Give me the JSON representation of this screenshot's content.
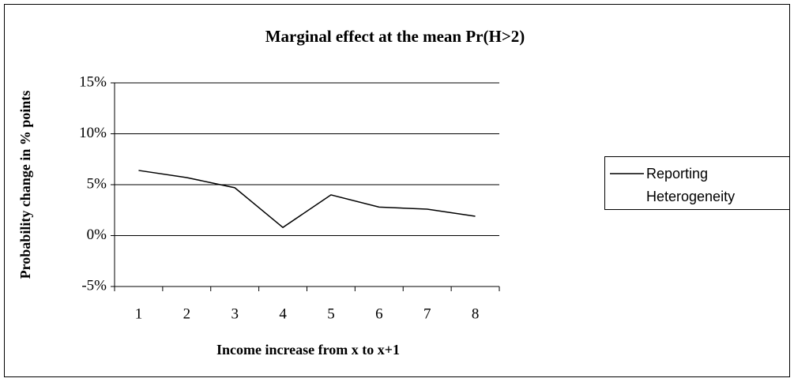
{
  "chart_data": {
    "type": "line",
    "title": "Marginal effect at the mean Pr(H>2)",
    "x_label": "Income increase from x to x+1",
    "y_label": "Probability change in % points",
    "categories": [
      "1",
      "2",
      "3",
      "4",
      "5",
      "6",
      "7",
      "8"
    ],
    "series": [
      {
        "name": "Reporting Heterogeneity",
        "color": "#000000",
        "values": [
          6.4,
          5.7,
          4.7,
          0.8,
          4.0,
          2.8,
          2.6,
          1.9
        ]
      }
    ],
    "ylim": [
      -5,
      15
    ],
    "yticks": [
      {
        "value": -5,
        "label": "-5%"
      },
      {
        "value": 0,
        "label": "0%"
      },
      {
        "value": 5,
        "label": "5%"
      },
      {
        "value": 10,
        "label": "10%"
      },
      {
        "value": 15,
        "label": "15%"
      }
    ],
    "grid": true,
    "legend": "right"
  }
}
